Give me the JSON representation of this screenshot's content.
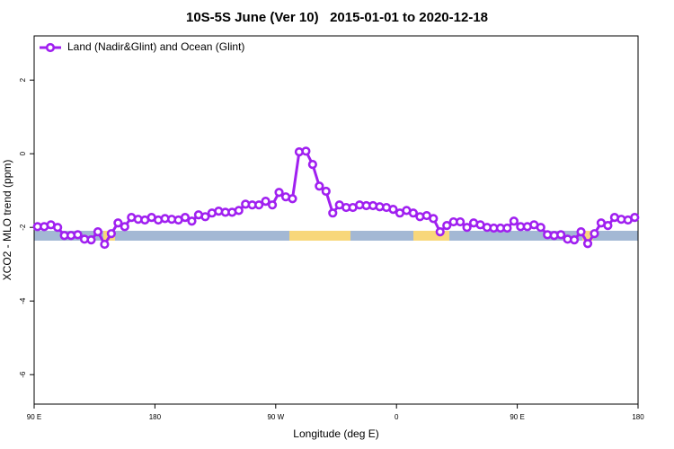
{
  "chart_data": {
    "type": "line",
    "title": "10S-5S June (Ver 10)   2015-01-01 to 2020-12-18",
    "x_label": "Longitude (deg E)",
    "y_label": "XCO2 - MLO trend (ppm)",
    "xlim": [
      0,
      360
    ],
    "ylim": [
      -6.8,
      3.2
    ],
    "xticks": [
      {
        "value": 0,
        "label": "90 E"
      },
      {
        "value": 72,
        "label": "180"
      },
      {
        "value": 144,
        "label": "90 W"
      },
      {
        "value": 216,
        "label": "0"
      },
      {
        "value": 288,
        "label": "90 E"
      },
      {
        "value": 360,
        "label": "180"
      }
    ],
    "yticks": [
      -6,
      -4,
      -2,
      0,
      2
    ],
    "legend": "top-left",
    "x": [
      2,
      6,
      10,
      14,
      18,
      22,
      26,
      30,
      34,
      38,
      42,
      46,
      50,
      54,
      58,
      62,
      66,
      70,
      74,
      78,
      82,
      86,
      90,
      94,
      98,
      102,
      106,
      110,
      114,
      118,
      122,
      126,
      130,
      134,
      138,
      142,
      146,
      150,
      154,
      158,
      162,
      166,
      170,
      174,
      178,
      182,
      186,
      190,
      194,
      198,
      202,
      206,
      210,
      214,
      218,
      222,
      226,
      230,
      234,
      238,
      242,
      246,
      250,
      254,
      258,
      262,
      266,
      270,
      274,
      278,
      282,
      286,
      290,
      294,
      298,
      302,
      306,
      310,
      314,
      318,
      322,
      326,
      330,
      334,
      338,
      342,
      346,
      350,
      354,
      358
    ],
    "series": [
      {
        "name": "Land (Nadir&Glint) and Ocean (Glint)",
        "color": "#a020f0",
        "values": [
          -1.98,
          -1.98,
          -1.93,
          -2.0,
          -2.22,
          -2.22,
          -2.2,
          -2.32,
          -2.34,
          -2.12,
          -2.46,
          -2.17,
          -1.88,
          -1.98,
          -1.73,
          -1.78,
          -1.8,
          -1.73,
          -1.8,
          -1.76,
          -1.78,
          -1.8,
          -1.73,
          -1.83,
          -1.66,
          -1.71,
          -1.61,
          -1.56,
          -1.59,
          -1.59,
          -1.54,
          -1.37,
          -1.39,
          -1.39,
          -1.29,
          -1.39,
          -1.05,
          -1.17,
          -1.22,
          0.05,
          0.07,
          -0.29,
          -0.88,
          -1.02,
          -1.61,
          -1.39,
          -1.46,
          -1.46,
          -1.39,
          -1.41,
          -1.41,
          -1.44,
          -1.46,
          -1.51,
          -1.61,
          -1.54,
          -1.61,
          -1.71,
          -1.68,
          -1.76,
          -2.12,
          -1.95,
          -1.85,
          -1.85,
          -2.0,
          -1.88,
          -1.93,
          -2.0,
          -2.02,
          -2.02,
          -2.02,
          -1.83,
          -1.98,
          -1.98,
          -1.93,
          -2.0,
          -2.2,
          -2.22,
          -2.2,
          -2.32,
          -2.34,
          -2.12,
          -2.44,
          -2.17,
          -1.88,
          -1.95,
          -1.73,
          -1.78,
          -1.8,
          -1.73
        ]
      }
    ]
  }
}
